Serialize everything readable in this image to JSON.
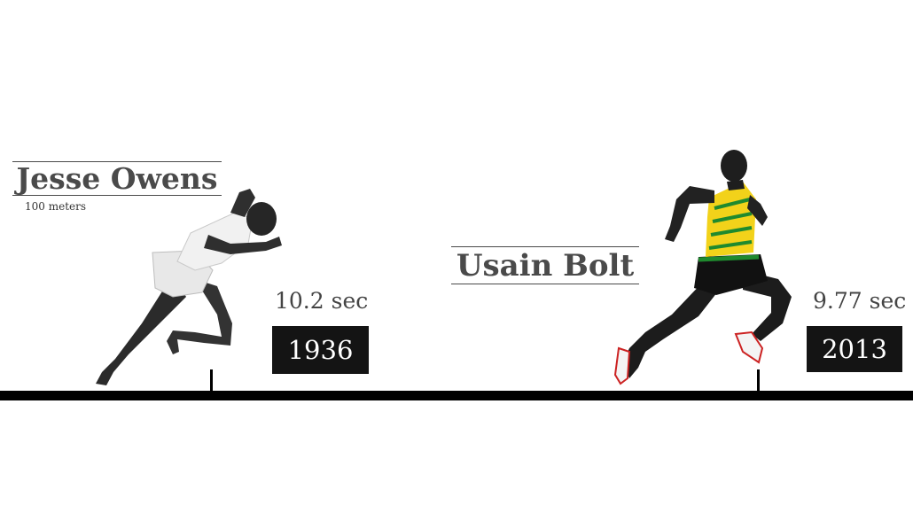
{
  "athletes": [
    {
      "name": "Jesse Owens",
      "event": "100 meters",
      "time": "10.2 sec",
      "year": "1936"
    },
    {
      "name": "Usain Bolt",
      "time": "9.77 sec",
      "year": "2013"
    }
  ],
  "colors": {
    "timeline": "#000000",
    "year_box": "#141414",
    "name_text": "#4a4a4a",
    "bolt_jersey": "#f2d21a",
    "bolt_trim": "#1f8a2e"
  },
  "icons": {
    "owens_figure": "sprinter-start-silhouette",
    "bolt_figure": "sprinter-running-silhouette"
  }
}
